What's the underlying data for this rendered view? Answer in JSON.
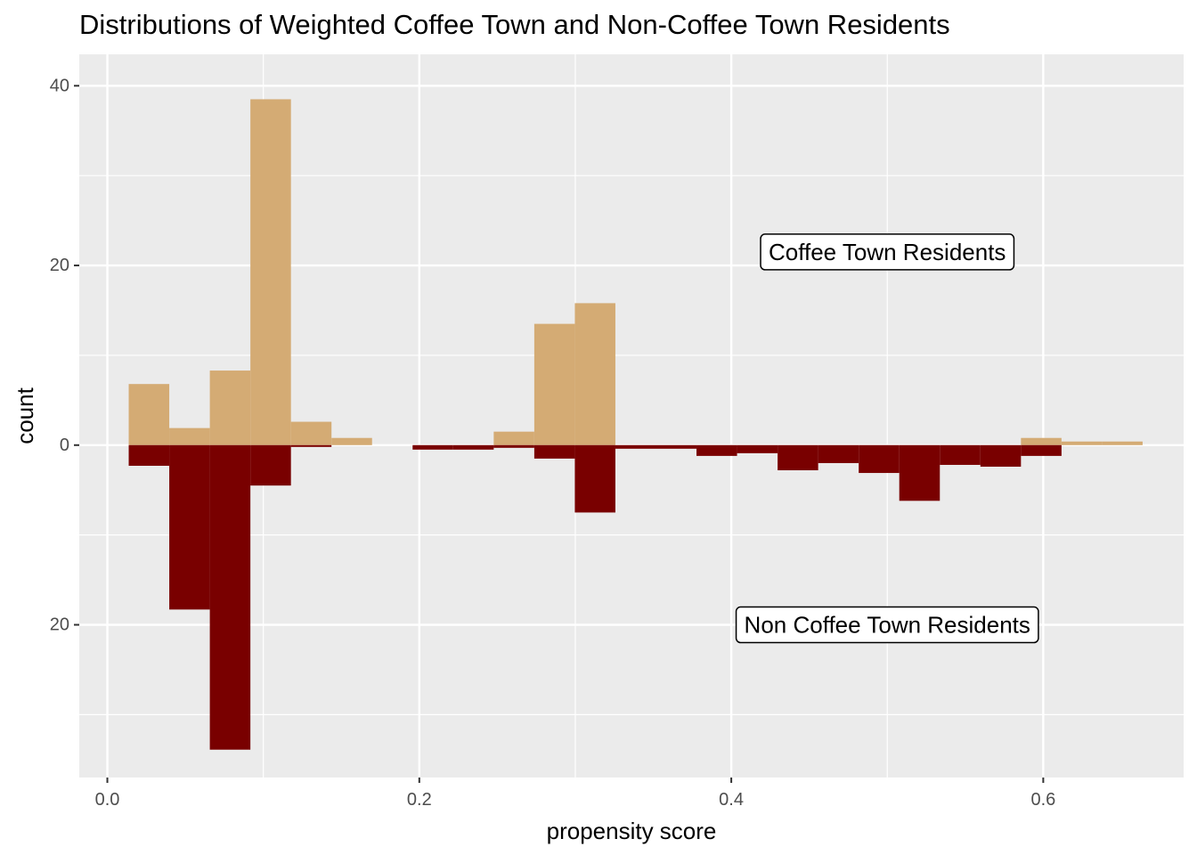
{
  "chart_data": {
    "type": "bar",
    "title": "Distributions of Weighted Coffee Town and Non-Coffee Town Residents",
    "xlabel": "propensity score",
    "ylabel": "count",
    "xlim": [
      -0.018,
      0.69
    ],
    "ylim": [
      -37,
      43.5
    ],
    "x_ticks": [
      0.0,
      0.2,
      0.4,
      0.6
    ],
    "x_tick_labels": [
      "0.0",
      "0.2",
      "0.4",
      "0.6"
    ],
    "y_ticks": [
      -20,
      0,
      20,
      40
    ],
    "y_tick_labels": [
      "20",
      "0",
      "20",
      "40"
    ],
    "grid": true,
    "bin_width": 0.026,
    "series": [
      {
        "color": "#D4AB74",
        "direction": "up",
        "bins": [
          {
            "x0": 0.0137,
            "count": 6.8
          },
          {
            "x0": 0.0397,
            "count": 1.9
          },
          {
            "x0": 0.0657,
            "count": 8.3
          },
          {
            "x0": 0.0917,
            "count": 38.5
          },
          {
            "x0": 0.1177,
            "count": 2.6
          },
          {
            "x0": 0.1437,
            "count": 0.8
          },
          {
            "x0": 0.2477,
            "count": 1.5
          },
          {
            "x0": 0.2737,
            "count": 13.5
          },
          {
            "x0": 0.2997,
            "count": 15.8
          },
          {
            "x0": 0.5857,
            "count": 0.8
          },
          {
            "x0": 0.6117,
            "count": 0.4
          },
          {
            "x0": 0.6377,
            "count": 0.4
          }
        ]
      },
      {
        "color": "#790000",
        "direction": "down",
        "bins": [
          {
            "x0": 0.0137,
            "count": 2.3
          },
          {
            "x0": 0.0397,
            "count": 18.3
          },
          {
            "x0": 0.0657,
            "count": 33.9
          },
          {
            "x0": 0.0917,
            "count": 4.5
          },
          {
            "x0": 0.1177,
            "count": 0.2
          },
          {
            "x0": 0.1957,
            "count": 0.5
          },
          {
            "x0": 0.2217,
            "count": 0.5
          },
          {
            "x0": 0.2477,
            "count": 0.3
          },
          {
            "x0": 0.2737,
            "count": 1.5
          },
          {
            "x0": 0.2997,
            "count": 7.5
          },
          {
            "x0": 0.3257,
            "count": 0.4
          },
          {
            "x0": 0.3517,
            "count": 0.4
          },
          {
            "x0": 0.3777,
            "count": 1.2
          },
          {
            "x0": 0.4037,
            "count": 0.9
          },
          {
            "x0": 0.4297,
            "count": 2.8
          },
          {
            "x0": 0.4557,
            "count": 2.0
          },
          {
            "x0": 0.4817,
            "count": 3.1
          },
          {
            "x0": 0.5077,
            "count": 6.2
          },
          {
            "x0": 0.5337,
            "count": 2.2
          },
          {
            "x0": 0.5597,
            "count": 2.4
          },
          {
            "x0": 0.5857,
            "count": 1.2
          }
        ]
      }
    ],
    "annotations": [
      {
        "text": "Coffee Town Residents",
        "x": 0.5,
        "y": 21.5
      },
      {
        "text": "Non Coffee Town Residents",
        "x": 0.5,
        "y": -20
      }
    ]
  }
}
